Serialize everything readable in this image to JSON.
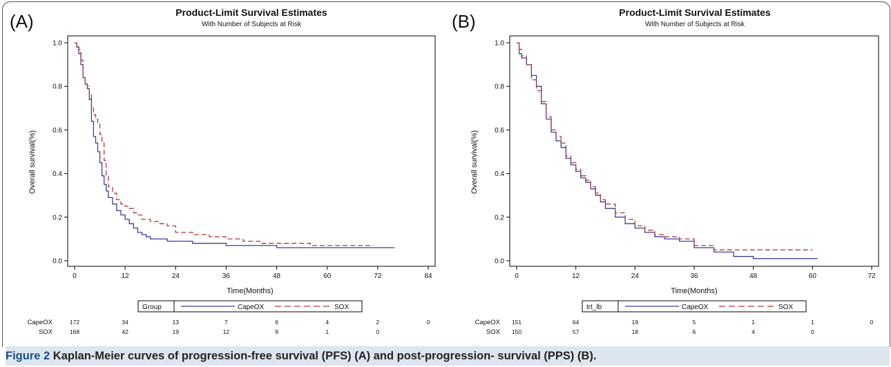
{
  "caption": {
    "label": "Figure 2",
    "text": "Kaplan-Meier curves of progression-free survival (PFS) (A) and post-progression- survival (PPS) (B)."
  },
  "colors": {
    "capeox": "#3d3d9a",
    "sox": "#b03a3a",
    "axis": "#000000"
  },
  "chart_data": [
    {
      "type": "line",
      "panel_label": "(A)",
      "title": "Product-Limit Survival Estimates",
      "subtitle": "With Number of Subjects at Risk",
      "xlabel": "Time(Months)",
      "ylabel": "Overall survival(%)",
      "xlim": [
        0,
        84
      ],
      "ylim": [
        0,
        1
      ],
      "xticks": [
        0,
        12,
        24,
        36,
        48,
        60,
        72,
        84
      ],
      "yticks": [
        "0.0",
        "0.2",
        "0.4",
        "0.6",
        "0.8",
        "1.0"
      ],
      "legend": {
        "title": "Group",
        "position": "bottom"
      },
      "series": [
        {
          "name": "CapeOX",
          "style": "solid",
          "x": [
            0,
            0.5,
            1,
            1.5,
            2,
            2.5,
            3,
            3.5,
            4,
            4.5,
            5,
            5.5,
            6,
            6.5,
            7,
            7.5,
            8,
            9,
            10,
            11,
            12,
            13,
            14,
            15,
            16,
            17,
            18,
            20,
            22,
            24,
            28,
            32,
            36,
            40,
            48,
            60,
            72,
            76
          ],
          "y": [
            1.0,
            0.98,
            0.95,
            0.9,
            0.84,
            0.81,
            0.79,
            0.74,
            0.64,
            0.57,
            0.54,
            0.5,
            0.45,
            0.39,
            0.35,
            0.32,
            0.29,
            0.26,
            0.23,
            0.21,
            0.19,
            0.17,
            0.15,
            0.13,
            0.12,
            0.11,
            0.1,
            0.1,
            0.09,
            0.09,
            0.08,
            0.08,
            0.07,
            0.07,
            0.06,
            0.06,
            0.06,
            0.06
          ]
        },
        {
          "name": "SOX",
          "style": "dashed",
          "x": [
            0,
            0.5,
            1,
            1.5,
            2,
            2.5,
            3,
            3.5,
            4,
            4.5,
            5,
            5.5,
            6,
            6.5,
            7,
            7.5,
            8,
            9,
            10,
            11,
            12,
            13,
            14,
            15,
            16,
            18,
            20,
            22,
            24,
            28,
            32,
            36,
            40,
            44,
            48,
            56,
            64,
            71
          ],
          "y": [
            1.0,
            0.99,
            0.97,
            0.92,
            0.84,
            0.82,
            0.8,
            0.77,
            0.71,
            0.67,
            0.65,
            0.63,
            0.58,
            0.54,
            0.46,
            0.39,
            0.34,
            0.31,
            0.28,
            0.26,
            0.25,
            0.24,
            0.22,
            0.21,
            0.19,
            0.18,
            0.17,
            0.16,
            0.13,
            0.12,
            0.11,
            0.1,
            0.09,
            0.08,
            0.08,
            0.07,
            0.07,
            0.07
          ]
        }
      ],
      "at_risk": {
        "times": [
          0,
          12,
          24,
          36,
          48,
          60,
          72,
          84
        ],
        "rows": [
          {
            "name": "CapeOX",
            "counts": [
              "172",
              "34",
              "13",
              "7",
              "6",
              "4",
              "2",
              "0"
            ]
          },
          {
            "name": "SOX",
            "counts": [
              "168",
              "42",
              "19",
              "12",
              "9",
              "1",
              "0",
              ""
            ]
          }
        ]
      }
    },
    {
      "type": "line",
      "panel_label": "(B)",
      "title": "Product-Limit Survival Estimates",
      "subtitle": "With Number of Subjects at Risk",
      "xlabel": "Time(Months)",
      "ylabel": "Overall survival(%)",
      "xlim": [
        0,
        72
      ],
      "ylim": [
        0,
        1
      ],
      "xticks": [
        0,
        12,
        24,
        36,
        48,
        60,
        72
      ],
      "yticks": [
        "0.0",
        "0.2",
        "0.4",
        "0.6",
        "0.8",
        "1.0"
      ],
      "legend": {
        "title": "trt_lb",
        "position": "bottom"
      },
      "series": [
        {
          "name": "CapeOX",
          "style": "solid",
          "x": [
            0,
            0.5,
            1,
            2,
            3,
            4,
            5,
            6,
            7,
            8,
            9,
            10,
            11,
            12,
            13,
            14,
            15,
            16,
            17,
            18,
            20,
            22,
            24,
            26,
            28,
            30,
            33,
            36,
            40,
            44,
            48,
            52,
            56,
            61
          ],
          "y": [
            1.0,
            0.95,
            0.93,
            0.9,
            0.85,
            0.8,
            0.72,
            0.65,
            0.59,
            0.55,
            0.52,
            0.47,
            0.44,
            0.41,
            0.38,
            0.36,
            0.33,
            0.3,
            0.27,
            0.24,
            0.2,
            0.17,
            0.15,
            0.13,
            0.11,
            0.1,
            0.09,
            0.06,
            0.04,
            0.02,
            0.01,
            0.01,
            0.01,
            0.01
          ]
        },
        {
          "name": "SOX",
          "style": "dashed",
          "x": [
            0,
            0.5,
            1,
            2,
            3,
            4,
            5,
            6,
            7,
            8,
            9,
            10,
            11,
            12,
            13,
            14,
            15,
            16,
            17,
            18,
            20,
            22,
            24,
            26,
            28,
            30,
            33,
            36,
            40,
            44,
            48,
            52,
            56,
            60
          ],
          "y": [
            1.0,
            0.97,
            0.94,
            0.9,
            0.83,
            0.78,
            0.73,
            0.66,
            0.6,
            0.57,
            0.54,
            0.48,
            0.45,
            0.42,
            0.39,
            0.37,
            0.34,
            0.31,
            0.28,
            0.26,
            0.22,
            0.19,
            0.16,
            0.14,
            0.12,
            0.11,
            0.1,
            0.07,
            0.05,
            0.05,
            0.05,
            0.05,
            0.05,
            0.05
          ]
        }
      ],
      "at_risk": {
        "times": [
          0,
          12,
          24,
          36,
          48,
          60,
          72
        ],
        "rows": [
          {
            "name": "CapeOX",
            "counts": [
              "151",
              "64",
              "19",
              "5",
              "1",
              "1",
              "0"
            ]
          },
          {
            "name": "SOX",
            "counts": [
              "150",
              "57",
              "18",
              "6",
              "4",
              "0",
              ""
            ]
          }
        ]
      }
    }
  ]
}
